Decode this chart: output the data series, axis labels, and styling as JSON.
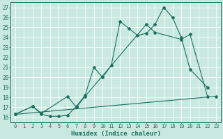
{
  "xlabel": "Humidex (Indice chaleur)",
  "ylabel": "",
  "bg_color": "#c8e8e0",
  "line_color": "#1a7060",
  "grid_color": "#ffffff",
  "xlim": [
    -0.5,
    23.5
  ],
  "ylim": [
    15.5,
    27.5
  ],
  "xticks": [
    0,
    1,
    2,
    3,
    4,
    5,
    6,
    7,
    8,
    9,
    10,
    11,
    12,
    13,
    14,
    15,
    16,
    17,
    18,
    19,
    20,
    21,
    22,
    23
  ],
  "yticks": [
    16,
    17,
    18,
    19,
    20,
    21,
    22,
    23,
    24,
    25,
    26,
    27
  ],
  "line1_x": [
    0,
    2,
    3,
    4,
    5,
    6,
    7,
    8,
    9,
    10,
    11,
    12,
    13,
    14,
    15,
    16,
    17,
    18,
    19,
    20,
    22
  ],
  "line1_y": [
    16.3,
    17.1,
    16.3,
    16.1,
    16.1,
    16.2,
    17.1,
    18.2,
    21.0,
    20.0,
    21.2,
    25.6,
    24.9,
    24.2,
    24.4,
    25.3,
    27.0,
    26.0,
    24.0,
    20.8,
    19.0
  ],
  "line2_x": [
    0,
    2,
    3,
    6,
    7,
    8,
    15,
    16,
    19,
    20,
    22
  ],
  "line2_y": [
    16.3,
    17.1,
    16.4,
    18.1,
    17.0,
    18.1,
    25.3,
    24.5,
    23.8,
    24.3,
    18.1
  ],
  "line3_x": [
    0,
    23
  ],
  "line3_y": [
    16.3,
    18.1
  ]
}
